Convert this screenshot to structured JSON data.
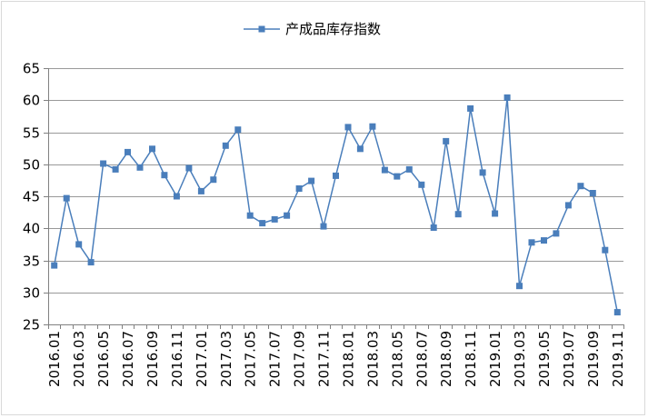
{
  "chart_data": {
    "type": "line",
    "legend": {
      "label": "产成品库存指数",
      "position": "top"
    },
    "colors": {
      "series": "#4a7ebb",
      "grid": "#999999",
      "axis": "#808080"
    },
    "ylim": [
      25,
      65
    ],
    "yticks": [
      25,
      30,
      35,
      40,
      45,
      50,
      55,
      60,
      65
    ],
    "grid": true,
    "x": [
      "2016.01",
      "2016.02",
      "2016.03",
      "2016.04",
      "2016.05",
      "2016.06",
      "2016.07",
      "2016.08",
      "2016.09",
      "2016.10",
      "2016.11",
      "2016.12",
      "2017.01",
      "2017.02",
      "2017.03",
      "2017.04",
      "2017.05",
      "2017.06",
      "2017.07",
      "2017.08",
      "2017.09",
      "2017.10",
      "2017.11",
      "2017.12",
      "2018.01",
      "2018.02",
      "2018.03",
      "2018.04",
      "2018.05",
      "2018.06",
      "2018.07",
      "2018.08",
      "2018.09",
      "2018.10",
      "2018.11",
      "2018.12",
      "2019.01",
      "2019.02",
      "2019.03",
      "2019.04",
      "2019.05",
      "2019.06",
      "2019.07",
      "2019.08",
      "2019.09",
      "2019.10",
      "2019.11"
    ],
    "x_tick_labels": [
      "2016.01",
      "2016.03",
      "2016.05",
      "2016.07",
      "2016.09",
      "2016.11",
      "2017.01",
      "2017.03",
      "2017.05",
      "2017.07",
      "2017.09",
      "2017.11",
      "2018.01",
      "2018.03",
      "2018.05",
      "2018.07",
      "2018.09",
      "2018.11",
      "2019.01",
      "2019.03",
      "2019.05",
      "2019.07",
      "2019.09",
      "2019.11"
    ],
    "series": [
      {
        "name": "产成品库存指数",
        "values": [
          34.2,
          44.7,
          37.5,
          34.7,
          50.1,
          49.2,
          51.9,
          49.5,
          52.4,
          48.3,
          45.0,
          49.4,
          45.8,
          47.6,
          52.9,
          55.4,
          42.0,
          40.8,
          41.4,
          42.0,
          46.2,
          47.4,
          40.3,
          48.2,
          55.8,
          52.4,
          55.9,
          49.1,
          48.1,
          49.2,
          46.8,
          40.1,
          53.6,
          42.2,
          58.7,
          48.7,
          42.3,
          60.4,
          31.0,
          37.8,
          38.1,
          39.2,
          43.6,
          46.6,
          45.5,
          36.6,
          26.9
        ]
      }
    ]
  }
}
